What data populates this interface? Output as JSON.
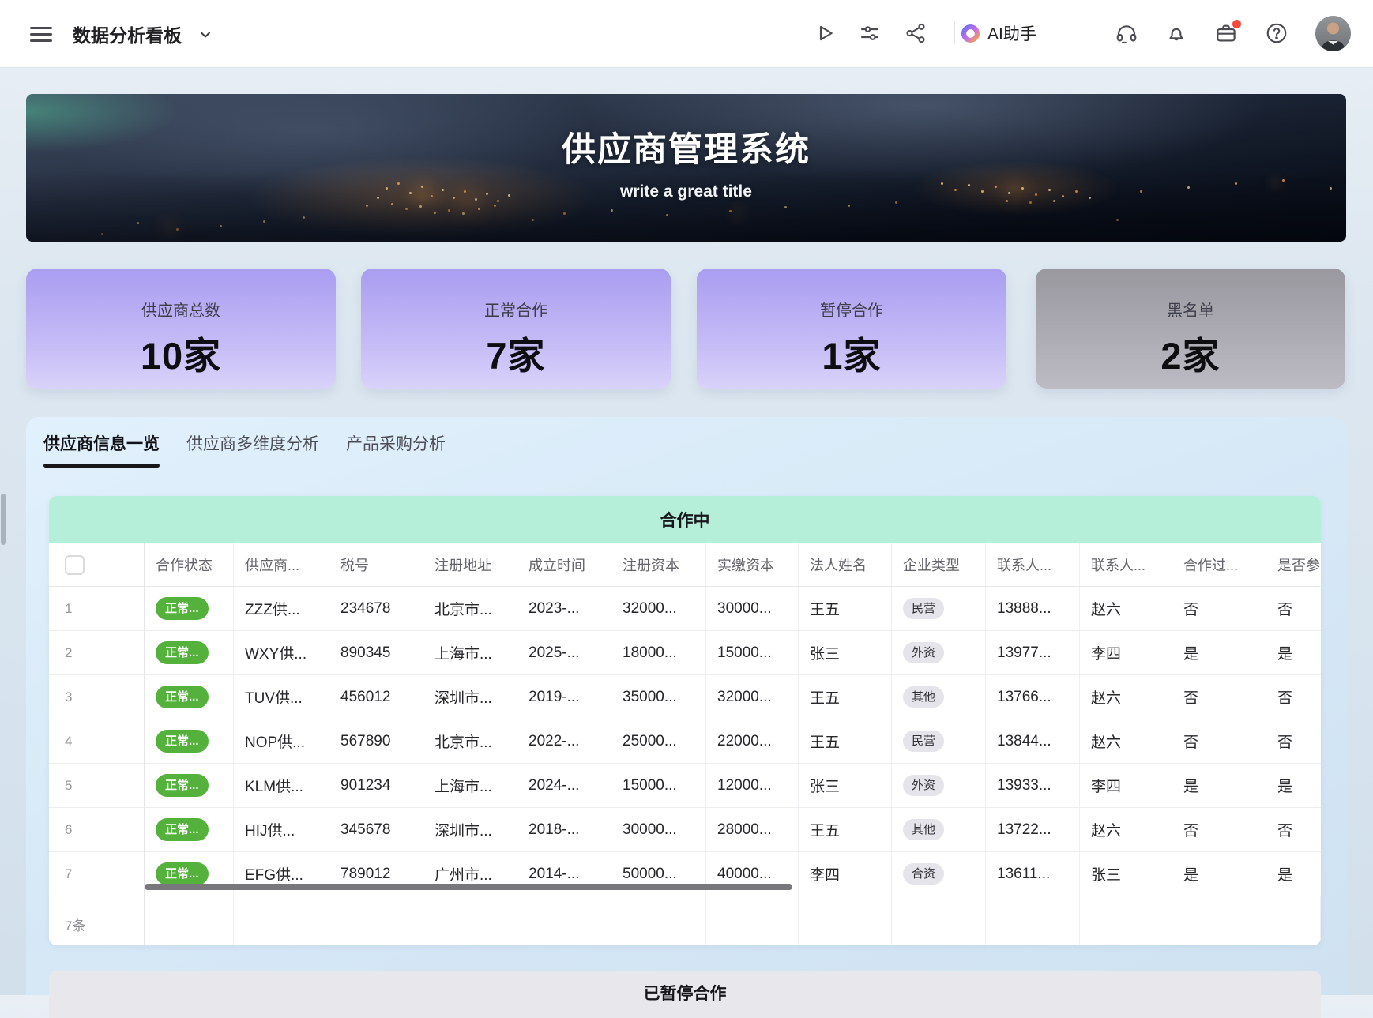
{
  "topbar": {
    "title": "数据分析看板",
    "ai_assistant_label": "AI助手",
    "icons": [
      "menu",
      "chevron-down",
      "play",
      "tune",
      "share",
      "ai-logo",
      "headset",
      "bell",
      "inbox",
      "help",
      "avatar"
    ]
  },
  "banner": {
    "title": "供应商管理系统",
    "subtitle": "write a great title"
  },
  "stats": [
    {
      "label": "供应商总数",
      "value": "10家",
      "variant": "purple"
    },
    {
      "label": "正常合作",
      "value": "7家",
      "variant": "purple"
    },
    {
      "label": "暂停合作",
      "value": "1家",
      "variant": "purple"
    },
    {
      "label": "黑名单",
      "value": "2家",
      "variant": "gray"
    }
  ],
  "tabs": [
    {
      "label": "供应商信息一览",
      "active": true
    },
    {
      "label": "供应商多维度分析",
      "active": false
    },
    {
      "label": "产品采购分析",
      "active": false
    }
  ],
  "cooperating_section": {
    "title": "合作中",
    "count_label": "7条",
    "columns": [
      "合作状态",
      "供应商...",
      "税号",
      "注册地址",
      "成立时间",
      "注册资本",
      "实缴资本",
      "法人姓名",
      "企业类型",
      "联系人...",
      "联系人...",
      "合作过...",
      "是否参"
    ],
    "rows": [
      {
        "num": "1",
        "status": "正常...",
        "name": "ZZZ供...",
        "tax": "234678",
        "address": "北京市...",
        "founded": "2023-...",
        "reg_capital": "32000...",
        "paid_capital": "30000...",
        "legal_person": "王五",
        "company_type": "民营",
        "contact_phone": "13888...",
        "contact_name": "赵六",
        "coop": "否",
        "participate": "否"
      },
      {
        "num": "2",
        "status": "正常...",
        "name": "WXY供...",
        "tax": "890345",
        "address": "上海市...",
        "founded": "2025-...",
        "reg_capital": "18000...",
        "paid_capital": "15000...",
        "legal_person": "张三",
        "company_type": "外资",
        "contact_phone": "13977...",
        "contact_name": "李四",
        "coop": "是",
        "participate": "是"
      },
      {
        "num": "3",
        "status": "正常...",
        "name": "TUV供...",
        "tax": "456012",
        "address": "深圳市...",
        "founded": "2019-...",
        "reg_capital": "35000...",
        "paid_capital": "32000...",
        "legal_person": "王五",
        "company_type": "其他",
        "contact_phone": "13766...",
        "contact_name": "赵六",
        "coop": "否",
        "participate": "否"
      },
      {
        "num": "4",
        "status": "正常...",
        "name": "NOP供...",
        "tax": "567890",
        "address": "北京市...",
        "founded": "2022-...",
        "reg_capital": "25000...",
        "paid_capital": "22000...",
        "legal_person": "王五",
        "company_type": "民营",
        "contact_phone": "13844...",
        "contact_name": "赵六",
        "coop": "否",
        "participate": "否"
      },
      {
        "num": "5",
        "status": "正常...",
        "name": "KLM供...",
        "tax": "901234",
        "address": "上海市...",
        "founded": "2024-...",
        "reg_capital": "15000...",
        "paid_capital": "12000...",
        "legal_person": "张三",
        "company_type": "外资",
        "contact_phone": "13933...",
        "contact_name": "李四",
        "coop": "是",
        "participate": "是"
      },
      {
        "num": "6",
        "status": "正常...",
        "name": "HIJ供...",
        "tax": "345678",
        "address": "深圳市...",
        "founded": "2018-...",
        "reg_capital": "30000...",
        "paid_capital": "28000...",
        "legal_person": "王五",
        "company_type": "其他",
        "contact_phone": "13722...",
        "contact_name": "赵六",
        "coop": "否",
        "participate": "否"
      },
      {
        "num": "7",
        "status": "正常...",
        "name": "EFG供...",
        "tax": "789012",
        "address": "广州市...",
        "founded": "2014-...",
        "reg_capital": "50000...",
        "paid_capital": "40000...",
        "legal_person": "李四",
        "company_type": "合资",
        "contact_phone": "13611...",
        "contact_name": "张三",
        "coop": "是",
        "participate": "是"
      }
    ]
  },
  "paused_section": {
    "title": "已暂停合作"
  },
  "colors": {
    "status_green": "#54b13c",
    "section_mint": "#b5eed9",
    "card_purple_top": "#a99df1",
    "card_purple_bottom": "#d9d2fa",
    "card_gray_top": "#99989f",
    "card_gray_bottom": "#bcbbc3",
    "notification_red": "#f5483b",
    "panel_blue": "#d7e9f7"
  }
}
